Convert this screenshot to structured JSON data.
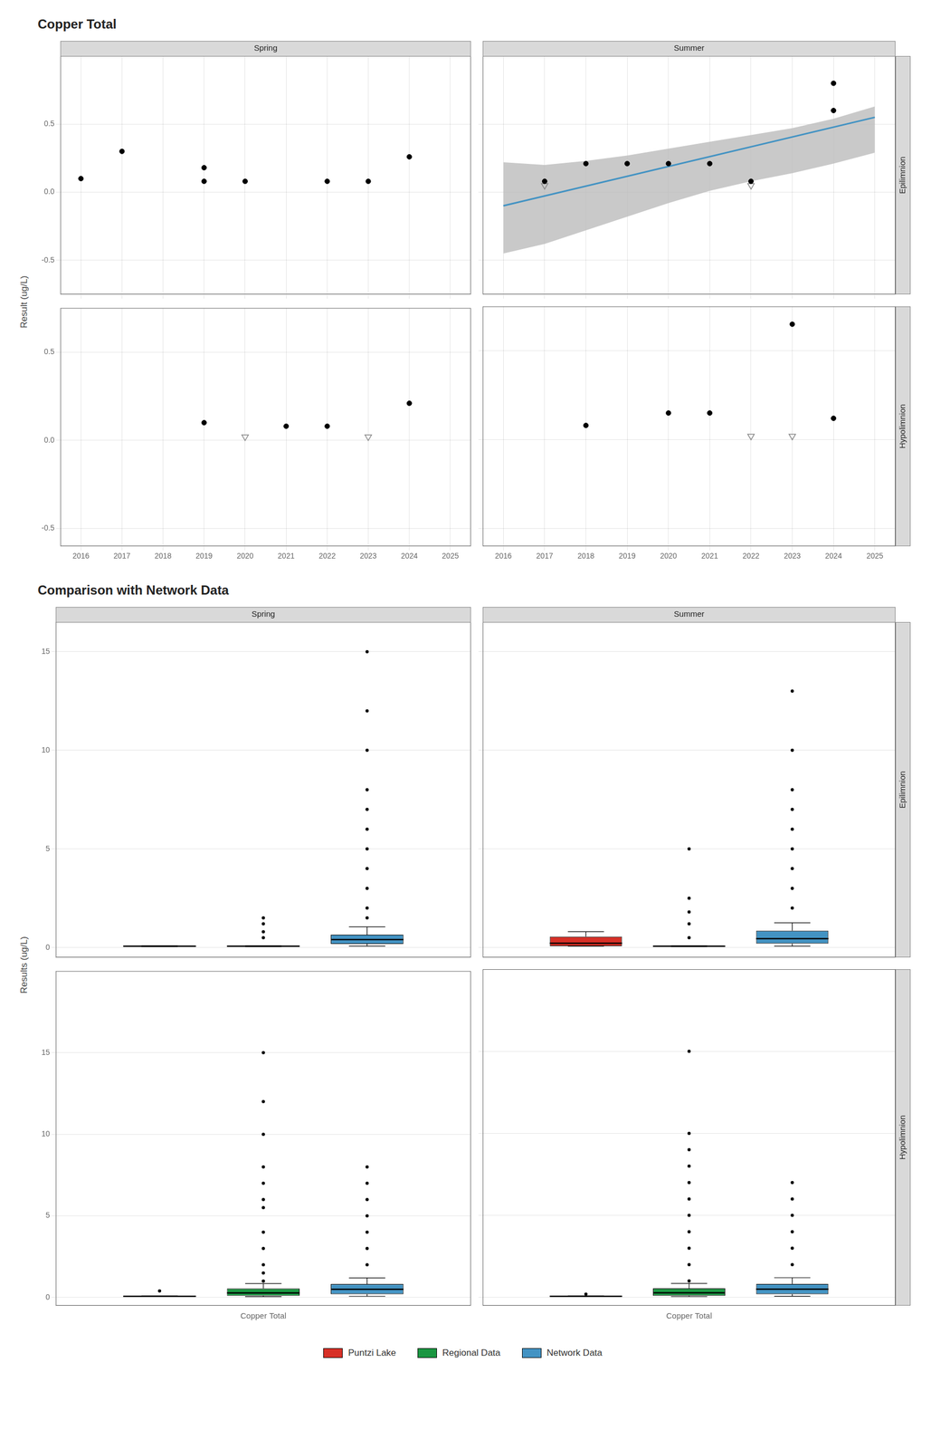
{
  "chart_data": [
    {
      "type": "scatter",
      "title": "Copper Total",
      "subtitle": "Spring",
      "ylabel": "Result (ug/L)",
      "series": [
        {
          "type": "scatter",
          "marker": "circle",
          "color": "black",
          "x": [
            2016,
            2017,
            2019,
            2019,
            2020,
            2022,
            2023,
            2024
          ],
          "values": [
            0.1,
            0.3,
            0.08,
            0.18,
            0.08,
            0.08,
            0.08,
            0.26
          ]
        }
      ],
      "xlim": [
        2015.5,
        2025.5
      ],
      "xticks": [
        2016,
        2017,
        2018,
        2019,
        2020,
        2021,
        2022,
        2023,
        2024,
        2025
      ],
      "ylim": [
        -0.75,
        1.0
      ],
      "yticks": [
        {
          "value": -0.5,
          "label": "-0.5"
        },
        {
          "value": 0,
          "label": "0.0"
        },
        {
          "value": 0.5,
          "label": "0.5"
        }
      ],
      "grid": true,
      "tick_labels": "y"
    },
    {
      "type": "scatter",
      "subtitle": "Summer",
      "annotations": [
        "Epilimnion"
      ],
      "series": [
        {
          "type": "scatter",
          "marker": "circle",
          "color": "black",
          "x": [
            2017,
            2018,
            2019,
            2020,
            2021,
            2022,
            2024,
            2024
          ],
          "values": [
            0.08,
            0.21,
            0.21,
            0.21,
            0.21,
            0.08,
            0.6,
            0.8
          ]
        },
        {
          "type": "area",
          "color": "#bbbbbb",
          "x": [
            2016,
            2017,
            2018,
            2019,
            2020,
            2021,
            2022,
            2023,
            2024,
            2025
          ],
          "upper": [
            0.22,
            0.2,
            0.23,
            0.27,
            0.32,
            0.37,
            0.42,
            0.47,
            0.54,
            0.63
          ],
          "lower": [
            -0.45,
            -0.38,
            -0.28,
            -0.18,
            -0.08,
            0.01,
            0.08,
            0.14,
            0.21,
            0.29
          ]
        },
        {
          "type": "line",
          "color": "#4393c3",
          "x": [
            2016,
            2025
          ],
          "values": [
            -0.1,
            0.55
          ]
        },
        {
          "type": "scatter",
          "marker": "triangle_down",
          "color": "#888888",
          "x": [
            2017,
            2022
          ],
          "values": [
            0.05,
            0.05
          ]
        }
      ],
      "xlim": [
        2015.5,
        2025.5
      ],
      "xticks": [
        2016,
        2017,
        2018,
        2019,
        2020,
        2021,
        2022,
        2023,
        2024,
        2025
      ],
      "ylim": [
        -0.75,
        1.0
      ],
      "yticks": [
        {
          "value": -0.5,
          "label": "-0.5"
        },
        {
          "value": 0,
          "label": "0.0"
        },
        {
          "value": 0.5,
          "label": "0.5"
        }
      ],
      "grid": true,
      "tick_labels": false
    },
    {
      "type": "scatter",
      "series": [
        {
          "type": "scatter",
          "marker": "circle",
          "color": "black",
          "x": [
            2019,
            2021,
            2022,
            2024
          ],
          "values": [
            0.1,
            0.08,
            0.08,
            0.21
          ]
        },
        {
          "type": "scatter",
          "marker": "triangle_down",
          "color": "#888888",
          "x": [
            2020,
            2023
          ],
          "values": [
            0.02,
            0.02
          ]
        }
      ],
      "xlim": [
        2015.5,
        2025.5
      ],
      "xticks": [
        2016,
        2017,
        2018,
        2019,
        2020,
        2021,
        2022,
        2023,
        2024,
        2025
      ],
      "ylim": [
        -0.6,
        0.75
      ],
      "yticks": [
        {
          "value": -0.5,
          "label": "-0.5"
        },
        {
          "value": 0,
          "label": "0.0"
        },
        {
          "value": 0.5,
          "label": "0.5"
        }
      ],
      "grid": true
    },
    {
      "type": "scatter",
      "annotations": [
        "Hypolimnion"
      ],
      "series": [
        {
          "type": "scatter",
          "marker": "circle",
          "color": "black",
          "x": [
            2018,
            2020,
            2021,
            2024
          ],
          "values": [
            0.08,
            0.15,
            0.15,
            0.12
          ]
        },
        {
          "type": "scatter",
          "marker": "circle",
          "color": "black",
          "x": [
            2023
          ],
          "values": [
            0.65
          ]
        },
        {
          "type": "scatter",
          "marker": "triangle_down",
          "color": "#888888",
          "x": [
            2022,
            2023
          ],
          "values": [
            0.02,
            0.02
          ]
        }
      ],
      "xlim": [
        2015.5,
        2025.5
      ],
      "xticks": [
        2016,
        2017,
        2018,
        2019,
        2020,
        2021,
        2022,
        2023,
        2024,
        2025
      ],
      "ylim": [
        -0.6,
        0.75
      ],
      "yticks": [
        {
          "value": -0.5,
          "label": "-0.5"
        },
        {
          "value": 0,
          "label": "0.0"
        },
        {
          "value": 0.5,
          "label": "0.5"
        }
      ],
      "grid": true,
      "tick_labels": "x"
    },
    {
      "type": "box",
      "title": "Comparison with Network Data",
      "subtitle": "Spring",
      "ylabel": "Results (ug/L)",
      "categories": [
        "Copper Total"
      ],
      "series": [
        {
          "name": "Puntzi Lake",
          "color": "#d73027",
          "values": [
            {
              "med": 0.07,
              "q1": 0.05,
              "q3": 0.09,
              "whislo": 0.05,
              "whishi": 0.09,
              "fliers": []
            }
          ]
        },
        {
          "name": "Regional Data",
          "color": "#1a9641",
          "values": [
            {
              "med": 0.07,
              "q1": 0.05,
              "q3": 0.09,
              "whislo": 0.05,
              "whishi": 0.09,
              "fliers": [
                0.5,
                0.8,
                1.2,
                1.5
              ]
            }
          ]
        },
        {
          "name": "Network Data",
          "color": "#4393c3",
          "values": [
            {
              "med": 0.4,
              "q1": 0.18,
              "q3": 0.65,
              "whislo": 0.07,
              "whishi": 1.05,
              "fliers": [
                1.5,
                2.0,
                3.0,
                4.0,
                5.0,
                6.0,
                7.0,
                8.0,
                10.0,
                12.0,
                15.0
              ]
            }
          ]
        }
      ],
      "ylim": [
        -0.5,
        16.5
      ],
      "yticks": [
        0,
        5,
        10,
        15
      ],
      "grid": "y",
      "tick_labels": "y"
    },
    {
      "type": "box",
      "subtitle": "Summer",
      "annotations": [
        "Epilimnion"
      ],
      "categories": [
        "Copper Total"
      ],
      "series": [
        {
          "name": "Puntzi Lake",
          "color": "#d73027",
          "values": [
            {
              "med": 0.22,
              "q1": 0.07,
              "q3": 0.55,
              "whislo": 0.07,
              "whishi": 0.8,
              "fliers": []
            }
          ]
        },
        {
          "name": "Regional Data",
          "color": "#1a9641",
          "values": [
            {
              "med": 0.07,
              "q1": 0.05,
              "q3": 0.09,
              "whislo": 0.05,
              "whishi": 0.09,
              "fliers": [
                0.5,
                1.2,
                1.8,
                2.5,
                5.0
              ]
            }
          ]
        },
        {
          "name": "Network Data",
          "color": "#4393c3",
          "values": [
            {
              "med": 0.45,
              "q1": 0.2,
              "q3": 0.85,
              "whislo": 0.07,
              "whishi": 1.25,
              "fliers": [
                2.0,
                3.0,
                4.0,
                5.0,
                6.0,
                7.0,
                8.0,
                10.0,
                13.0
              ]
            }
          ]
        }
      ],
      "ylim": [
        -0.5,
        16.5
      ],
      "yticks": [
        0,
        5,
        10,
        15
      ],
      "grid": "y",
      "tick_labels": false
    },
    {
      "type": "box",
      "categories": [
        "Copper Total"
      ],
      "series": [
        {
          "name": "Puntzi Lake",
          "color": "#d73027",
          "values": [
            {
              "med": 0.07,
              "q1": 0.05,
              "q3": 0.09,
              "whislo": 0.05,
              "whishi": 0.09,
              "fliers": [
                0.4
              ]
            }
          ]
        },
        {
          "name": "Regional Data",
          "color": "#1a9641",
          "values": [
            {
              "med": 0.28,
              "q1": 0.1,
              "q3": 0.55,
              "whislo": 0.05,
              "whishi": 0.85,
              "fliers": [
                1.0,
                1.5,
                2.0,
                3.0,
                4.0,
                5.5,
                6.0,
                7.0,
                8.0,
                10.0,
                12.0,
                15.0
              ]
            }
          ]
        },
        {
          "name": "Network Data",
          "color": "#4393c3",
          "values": [
            {
              "med": 0.5,
              "q1": 0.2,
              "q3": 0.82,
              "whislo": 0.07,
              "whishi": 1.2,
              "fliers": [
                2.0,
                3.0,
                4.0,
                5.0,
                6.0,
                7.0,
                8.0
              ]
            }
          ]
        }
      ],
      "ylim": [
        -0.5,
        20.0
      ],
      "yticks": [
        0,
        5,
        10,
        15
      ],
      "grid": "y"
    },
    {
      "type": "box",
      "annotations": [
        "Hypolimnion"
      ],
      "legend": "bottom",
      "categories": [
        "Copper Total"
      ],
      "series": [
        {
          "name": "Puntzi Lake",
          "color": "#d73027",
          "values": [
            {
              "med": 0.07,
              "q1": 0.05,
              "q3": 0.09,
              "whislo": 0.05,
              "whishi": 0.09,
              "fliers": [
                0.2
              ]
            }
          ]
        },
        {
          "name": "Regional Data",
          "color": "#1a9641",
          "values": [
            {
              "med": 0.28,
              "q1": 0.1,
              "q3": 0.55,
              "whislo": 0.05,
              "whishi": 0.85,
              "fliers": [
                1.0,
                2.0,
                3.0,
                4.0,
                5.0,
                6.0,
                7.0,
                8.0,
                9.0,
                10.0,
                15.0
              ]
            }
          ]
        },
        {
          "name": "Network Data",
          "color": "#4393c3",
          "values": [
            {
              "med": 0.5,
              "q1": 0.2,
              "q3": 0.82,
              "whislo": 0.07,
              "whishi": 1.2,
              "fliers": [
                2.0,
                3.0,
                4.0,
                5.0,
                6.0,
                7.0
              ]
            }
          ]
        }
      ],
      "ylim": [
        -0.5,
        20.0
      ],
      "yticks": [
        0,
        5,
        10,
        15
      ],
      "grid": "y",
      "tick_labels": "x"
    }
  ]
}
